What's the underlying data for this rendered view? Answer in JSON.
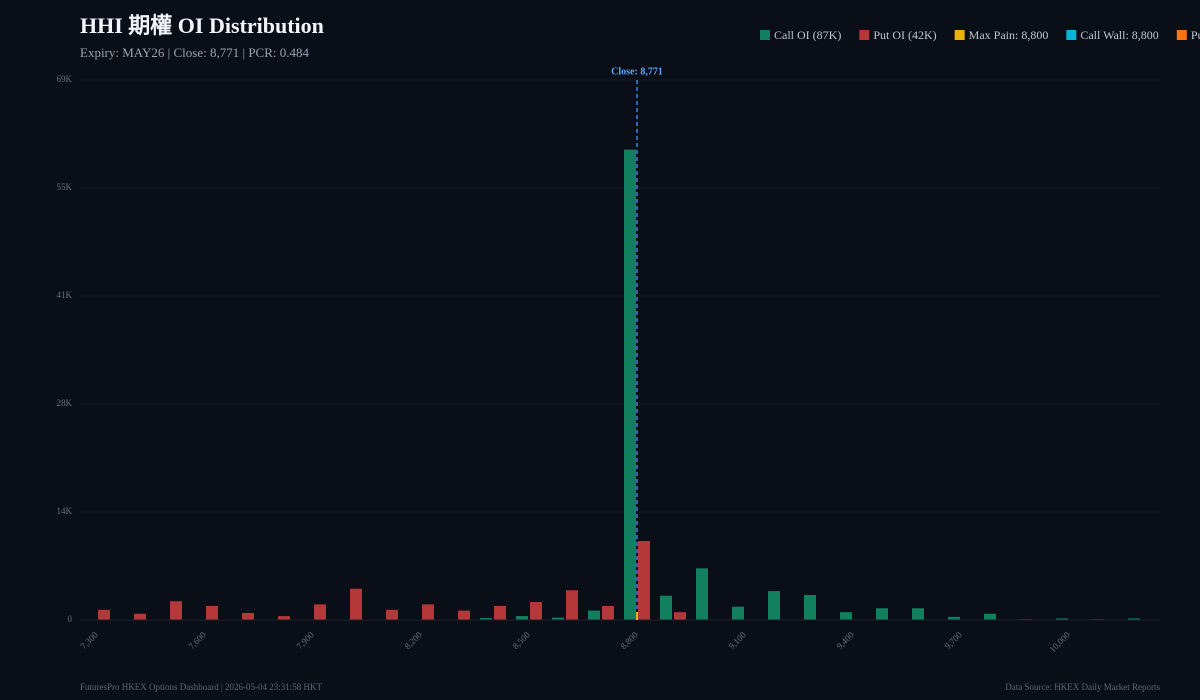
{
  "chart_data": {
    "type": "bar",
    "title": "HHI 期權 OI Distribution",
    "subtitle": "Expiry: MAY26 | Close: 8,771 | PCR: 0.484",
    "categories": [
      "7,300",
      null,
      null,
      "7,600",
      null,
      null,
      "7,900",
      null,
      null,
      "8,200",
      null,
      null,
      "8,500",
      null,
      null,
      "8,800",
      null,
      null,
      "9,100",
      null,
      null,
      "9,400",
      null,
      null,
      "9,700",
      null,
      null,
      "10,000",
      null,
      null
    ],
    "series": [
      {
        "name": "Call OI (87K)",
        "color": "#12805e",
        "values": [
          0,
          0,
          0,
          0,
          0,
          0,
          0,
          0,
          0,
          0,
          0,
          250,
          500,
          300,
          1200,
          60100,
          3100,
          6600,
          1700,
          3700,
          3200,
          1000,
          1500,
          1500,
          400,
          800,
          100,
          200,
          100,
          200
        ]
      },
      {
        "name": "Put OI (42K)",
        "color": "#b4373a",
        "values": [
          1300,
          800,
          2400,
          1800,
          900,
          500,
          2000,
          4000,
          1300,
          2000,
          1200,
          1800,
          2300,
          3800,
          1800,
          10100,
          1000,
          0,
          0,
          0,
          0,
          0,
          0,
          0,
          0,
          0,
          0,
          0,
          0,
          0
        ]
      }
    ],
    "legend_extra": [
      {
        "name": "Max Pain: 8,800",
        "color": "#eab308"
      },
      {
        "name": "Call Wall: 8,800",
        "color": "#06b6d4"
      },
      {
        "name": "Put Wall",
        "color": "#f97316"
      }
    ],
    "ylim": [
      0,
      69000
    ],
    "yticks": [
      0,
      {
        "value": 13800,
        "label": "14K"
      },
      {
        "value": 27600,
        "label": "28K"
      },
      {
        "value": 41400,
        "label": "41K"
      },
      {
        "value": 55200,
        "label": "55K"
      },
      {
        "value": 69000,
        "label": "69K"
      }
    ],
    "grid": true,
    "annotation": "Close: 8,771",
    "footer_left": "FuturesPro HKEX Options Dashboard | 2026-05-04 23:31:58 HKT",
    "footer_right": "Data Source: HKEX Daily Market Reports"
  }
}
